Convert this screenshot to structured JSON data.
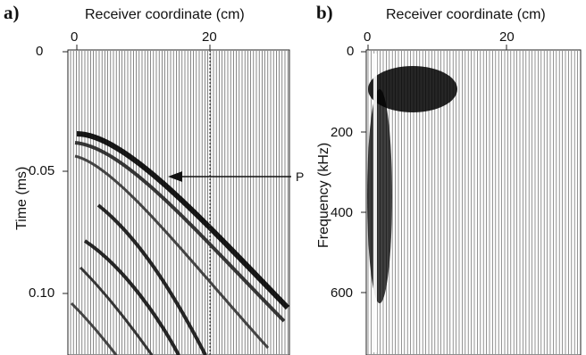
{
  "panels": [
    {
      "letter": "a)",
      "x_title": "Receiver coordinate (cm)",
      "y_title": "Time (ms)",
      "x_ticks": [
        "0",
        "20"
      ],
      "y_ticks": [
        "0",
        "0.05",
        "0.10"
      ],
      "annotation": "P"
    },
    {
      "letter": "b)",
      "x_title": "Receiver coordinate (cm)",
      "y_title": "Frequency (kHz)",
      "x_ticks": [
        "0",
        "20"
      ],
      "y_ticks": [
        "0",
        "200",
        "400",
        "600"
      ]
    }
  ],
  "chart_data": [
    {
      "type": "heatmap",
      "description_kind": "seismic wiggle traces",
      "xlabel": "Receiver coordinate (cm)",
      "ylabel": "Time (ms)",
      "x_ticks": [
        0,
        20
      ],
      "y_ticks": [
        0,
        0.05,
        0.1
      ],
      "xlim": [
        -1,
        31
      ],
      "ylim": [
        0,
        0.125
      ],
      "y_inverted": true,
      "annotations": [
        {
          "text": "P",
          "x": 14,
          "y": 0.051
        }
      ]
    },
    {
      "type": "heatmap",
      "xlabel": "Receiver coordinate (cm)",
      "ylabel": "Frequency (kHz)",
      "x_ticks": [
        0,
        20
      ],
      "y_ticks": [
        0,
        200,
        400,
        600
      ],
      "xlim": [
        0,
        31
      ],
      "ylim": [
        0,
        760
      ],
      "y_inverted": true
    }
  ]
}
